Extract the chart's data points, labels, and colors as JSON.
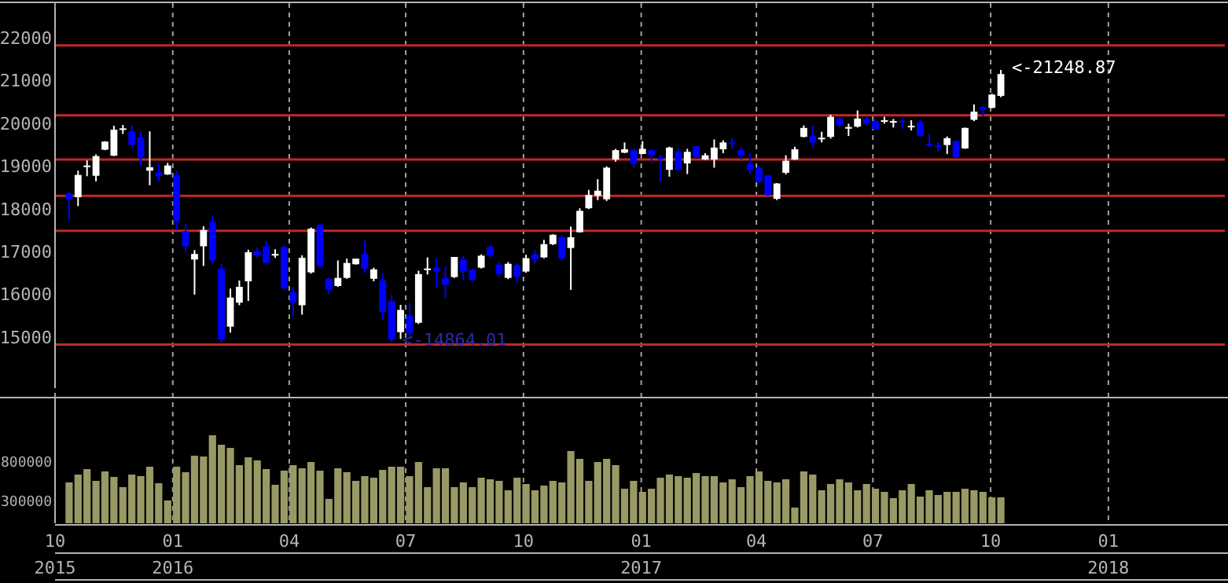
{
  "chart_data": [
    {
      "type": "candlestick",
      "x": [
        "2015-10-12",
        "2015-10-19",
        "2015-10-26",
        "2015-11-02",
        "2015-11-09",
        "2015-11-16",
        "2015-11-23",
        "2015-11-30",
        "2015-12-07",
        "2015-12-14",
        "2015-12-21",
        "2015-12-28",
        "2016-01-04",
        "2016-01-11",
        "2016-01-18",
        "2016-01-25",
        "2016-02-01",
        "2016-02-08",
        "2016-02-15",
        "2016-02-22",
        "2016-02-29",
        "2016-03-07",
        "2016-03-14",
        "2016-03-21",
        "2016-03-28",
        "2016-04-04",
        "2016-04-11",
        "2016-04-18",
        "2016-04-25",
        "2016-05-02",
        "2016-05-09",
        "2016-05-16",
        "2016-05-23",
        "2016-05-30",
        "2016-06-06",
        "2016-06-13",
        "2016-06-20",
        "2016-06-27",
        "2016-07-04",
        "2016-07-11",
        "2016-07-18",
        "2016-07-25",
        "2016-08-01",
        "2016-08-08",
        "2016-08-15",
        "2016-08-22",
        "2016-08-29",
        "2016-09-05",
        "2016-09-12",
        "2016-09-19",
        "2016-09-26",
        "2016-10-03",
        "2016-10-10",
        "2016-10-17",
        "2016-10-24",
        "2016-10-31",
        "2016-11-07",
        "2016-11-14",
        "2016-11-21",
        "2016-11-28",
        "2016-12-05",
        "2016-12-12",
        "2016-12-19",
        "2016-12-26",
        "2017-01-02",
        "2017-01-09",
        "2017-01-16",
        "2017-01-23",
        "2017-01-30",
        "2017-02-06",
        "2017-02-13",
        "2017-02-20",
        "2017-02-27",
        "2017-03-06",
        "2017-03-13",
        "2017-03-20",
        "2017-03-27",
        "2017-04-03",
        "2017-04-10",
        "2017-04-17",
        "2017-04-24",
        "2017-05-01",
        "2017-05-08",
        "2017-05-15",
        "2017-05-22",
        "2017-05-29",
        "2017-06-05",
        "2017-06-12",
        "2017-06-19",
        "2017-06-26",
        "2017-07-03",
        "2017-07-10",
        "2017-07-17",
        "2017-07-24",
        "2017-07-31",
        "2017-08-07",
        "2017-08-14",
        "2017-08-21",
        "2017-08-28",
        "2017-09-04",
        "2017-09-11",
        "2017-09-18",
        "2017-09-25",
        "2017-10-02",
        "2017-10-09"
      ],
      "ohlc": [
        [
          18360,
          18400,
          17720,
          18210
        ],
        [
          18270,
          18890,
          18060,
          18790
        ],
        [
          19000,
          19130,
          18760,
          19010
        ],
        [
          18770,
          19270,
          18640,
          19230
        ],
        [
          19380,
          19580,
          19370,
          19570
        ],
        [
          19240,
          19940,
          19230,
          19850
        ],
        [
          19870,
          19960,
          19750,
          19880
        ],
        [
          19810,
          19960,
          19420,
          19500
        ],
        [
          19670,
          19810,
          19010,
          19200
        ],
        [
          18890,
          19810,
          18550,
          18970
        ],
        [
          18850,
          19050,
          18640,
          18760
        ],
        [
          18800,
          19070,
          18790,
          19010
        ],
        [
          18790,
          18890,
          17500,
          17710
        ],
        [
          17470,
          17650,
          16970,
          17120
        ],
        [
          16810,
          17030,
          15990,
          16940
        ],
        [
          17120,
          17590,
          16660,
          17500
        ],
        [
          17690,
          17840,
          16730,
          16790
        ],
        [
          16600,
          16720,
          14870,
          14940
        ],
        [
          15240,
          16130,
          15100,
          15920
        ],
        [
          15800,
          16320,
          15740,
          16170
        ],
        [
          16300,
          17040,
          15840,
          16980
        ],
        [
          17000,
          17090,
          16850,
          16910
        ],
        [
          17120,
          17250,
          16720,
          16730
        ],
        [
          16930,
          17050,
          16850,
          16940
        ],
        [
          17100,
          17160,
          16090,
          16140
        ],
        [
          16050,
          16170,
          15470,
          15800
        ],
        [
          15740,
          16910,
          15520,
          16850
        ],
        [
          16510,
          17560,
          16480,
          17530
        ],
        [
          17620,
          17640,
          16600,
          16660
        ],
        [
          16360,
          16380,
          15990,
          16110
        ],
        [
          16190,
          16790,
          16170,
          16380
        ],
        [
          16380,
          16830,
          16360,
          16730
        ],
        [
          16700,
          16830,
          16690,
          16830
        ],
        [
          16940,
          17250,
          16500,
          16600
        ],
        [
          16360,
          16620,
          16300,
          16580
        ],
        [
          16320,
          16480,
          15390,
          15580
        ],
        [
          15840,
          15990,
          14864.01,
          14940
        ],
        [
          15110,
          15750,
          14950,
          15630
        ],
        [
          15500,
          15790,
          14990,
          15080
        ],
        [
          15330,
          16550,
          15300,
          16470
        ],
        [
          16590,
          16860,
          16460,
          16600
        ],
        [
          16620,
          16840,
          16160,
          16530
        ],
        [
          16370,
          16650,
          15910,
          16220
        ],
        [
          16400,
          16870,
          16380,
          16870
        ],
        [
          16810,
          16900,
          16340,
          16530
        ],
        [
          16570,
          16600,
          16300,
          16340
        ],
        [
          16620,
          16930,
          16600,
          16900
        ],
        [
          17110,
          17160,
          16850,
          16900
        ],
        [
          16690,
          16750,
          16400,
          16470
        ],
        [
          16380,
          16750,
          16350,
          16710
        ],
        [
          16680,
          16720,
          16250,
          16410
        ],
        [
          16530,
          16920,
          16500,
          16840
        ],
        [
          16930,
          17030,
          16710,
          16810
        ],
        [
          16860,
          17270,
          16840,
          17170
        ],
        [
          17170,
          17400,
          17150,
          17390
        ],
        [
          17330,
          17400,
          16780,
          16840
        ],
        [
          17080,
          17580,
          16100,
          17330
        ],
        [
          17450,
          18010,
          17440,
          17950
        ],
        [
          18010,
          18440,
          17990,
          18320
        ],
        [
          18300,
          18690,
          18200,
          18420
        ],
        [
          18220,
          18990,
          18180,
          18960
        ],
        [
          19150,
          19400,
          19100,
          19370
        ],
        [
          19310,
          19550,
          19300,
          19390
        ],
        [
          19370,
          19400,
          18960,
          19060
        ],
        [
          19280,
          19580,
          19280,
          19400
        ],
        [
          19370,
          19400,
          19060,
          19250
        ],
        [
          19190,
          19260,
          18630,
          19170
        ],
        [
          18910,
          19450,
          18750,
          19430
        ],
        [
          19330,
          19400,
          18900,
          18910
        ],
        [
          19060,
          19400,
          18810,
          19330
        ],
        [
          19460,
          19480,
          19200,
          19210
        ],
        [
          19150,
          19300,
          19140,
          19250
        ],
        [
          19150,
          19620,
          18960,
          19430
        ],
        [
          19390,
          19600,
          19300,
          19550
        ],
        [
          19550,
          19650,
          19400,
          19530
        ],
        [
          19370,
          19450,
          19150,
          19250
        ],
        [
          19040,
          19300,
          18800,
          18910
        ],
        [
          18960,
          19000,
          18600,
          18630
        ],
        [
          18780,
          18800,
          18300,
          18320
        ],
        [
          18230,
          18600,
          18200,
          18590
        ],
        [
          18840,
          19250,
          18800,
          19120
        ],
        [
          19150,
          19450,
          19140,
          19390
        ],
        [
          19680,
          19950,
          19670,
          19890
        ],
        [
          19700,
          19950,
          19430,
          19550
        ],
        [
          19650,
          19800,
          19550,
          19660
        ],
        [
          19680,
          20200,
          19640,
          20150
        ],
        [
          20110,
          20130,
          19900,
          19950
        ],
        [
          19900,
          19990,
          19700,
          19910
        ],
        [
          19920,
          20300,
          19900,
          20110
        ],
        [
          20110,
          20150,
          19950,
          19990
        ],
        [
          20050,
          20100,
          19850,
          19860
        ],
        [
          20060,
          20150,
          19990,
          20070
        ],
        [
          20040,
          20100,
          19900,
          20050
        ],
        [
          20060,
          20110,
          19870,
          20040
        ],
        [
          19930,
          20070,
          19830,
          19940
        ],
        [
          20020,
          20080,
          19690,
          19700
        ],
        [
          19520,
          19750,
          19440,
          19490
        ],
        [
          19480,
          19560,
          19340,
          19450
        ],
        [
          19490,
          19690,
          19280,
          19650
        ],
        [
          19580,
          19600,
          19190,
          19210
        ],
        [
          19410,
          19900,
          19400,
          19890
        ],
        [
          20080,
          20440,
          20050,
          20270
        ],
        [
          20380,
          20400,
          20170,
          20320
        ],
        [
          20360,
          20690,
          20350,
          20670
        ],
        [
          20640,
          21248.87,
          20610,
          21150
        ]
      ],
      "colors": [
        "#0000ff",
        "#ffffff",
        "#ffffff",
        "#ffffff",
        "#ffffff",
        "#ffffff",
        "#ffffff",
        "#0000ff",
        "#0000ff",
        "#ffffff",
        "#0000ff",
        "#ffffff",
        "#0000ff",
        "#0000ff",
        "#ffffff",
        "#ffffff",
        "#0000ff",
        "#0000ff",
        "#ffffff",
        "#ffffff",
        "#ffffff",
        "#0000ff",
        "#0000ff",
        "#ffffff",
        "#0000ff",
        "#0000ff",
        "#ffffff",
        "#ffffff",
        "#0000ff",
        "#0000ff",
        "#ffffff",
        "#ffffff",
        "#ffffff",
        "#0000ff",
        "#ffffff",
        "#0000ff",
        "#0000ff",
        "#ffffff",
        "#0000ff",
        "#ffffff",
        "#ffffff",
        "#0000ff",
        "#0000ff",
        "#ffffff",
        "#0000ff",
        "#0000ff",
        "#ffffff",
        "#0000ff",
        "#0000ff",
        "#ffffff",
        "#0000ff",
        "#ffffff",
        "#0000ff",
        "#ffffff",
        "#ffffff",
        "#0000ff",
        "#ffffff",
        "#ffffff",
        "#ffffff",
        "#ffffff",
        "#ffffff",
        "#ffffff",
        "#ffffff",
        "#0000ff",
        "#ffffff",
        "#0000ff",
        "#0000ff",
        "#ffffff",
        "#0000ff",
        "#ffffff",
        "#0000ff",
        "#ffffff",
        "#ffffff",
        "#ffffff",
        "#0000ff",
        "#0000ff",
        "#0000ff",
        "#0000ff",
        "#0000ff",
        "#ffffff",
        "#ffffff",
        "#ffffff",
        "#ffffff",
        "#0000ff",
        "#ffffff",
        "#ffffff",
        "#0000ff",
        "#ffffff",
        "#ffffff",
        "#0000ff",
        "#0000ff",
        "#ffffff",
        "#ffffff",
        "#0000ff",
        "#ffffff",
        "#0000ff",
        "#0000ff",
        "#0000ff",
        "#ffffff",
        "#0000ff",
        "#ffffff",
        "#ffffff",
        "#0000ff",
        "#ffffff",
        "#ffffff"
      ],
      "xlim": [
        "2015-10-01",
        "2018-04-02"
      ],
      "xticks": [
        {
          "value": "2015-10-01",
          "label": null
        },
        {
          "value": "2016-01-01",
          "label": null
        },
        {
          "value": "2016-04-01",
          "label": null
        },
        {
          "value": "2016-07-01",
          "label": null
        },
        {
          "value": "2016-10-01",
          "label": null
        },
        {
          "value": "2017-01-01",
          "label": null
        },
        {
          "value": "2017-04-01",
          "label": null
        },
        {
          "value": "2017-07-01",
          "label": null
        },
        {
          "value": "2017-10-01",
          "label": null
        },
        {
          "value": "2018-01-01",
          "label": null
        }
      ],
      "ylim": [
        13800,
        22700
      ],
      "yticks": [
        15000,
        16000,
        17000,
        18000,
        19000,
        20000,
        21000,
        22000
      ],
      "grid": "x",
      "tick_labels": "y",
      "ref_lines": [
        {
          "axis": "y",
          "value": 14820,
          "color": "#c02828"
        },
        {
          "axis": "y",
          "value": 17480,
          "color": "#c02828"
        },
        {
          "axis": "y",
          "value": 18300,
          "color": "#c02828"
        },
        {
          "axis": "y",
          "value": 19150,
          "color": "#c02828"
        },
        {
          "axis": "y",
          "value": 20185,
          "color": "#c02828"
        },
        {
          "axis": "y",
          "value": 21820,
          "color": "#c02828"
        }
      ],
      "annotations": [
        {
          "text": "<-14864.01",
          "x": "2016-06-20",
          "y": 14864.01
        },
        {
          "text": "<-21248.87",
          "x": "2017-10-09",
          "y": 21248.87
        }
      ]
    },
    {
      "type": "bar",
      "x": [
        "2015-10-12",
        "2015-10-19",
        "2015-10-26",
        "2015-11-02",
        "2015-11-09",
        "2015-11-16",
        "2015-11-23",
        "2015-11-30",
        "2015-12-07",
        "2015-12-14",
        "2015-12-21",
        "2015-12-28",
        "2016-01-04",
        "2016-01-11",
        "2016-01-18",
        "2016-01-25",
        "2016-02-01",
        "2016-02-08",
        "2016-02-15",
        "2016-02-22",
        "2016-02-29",
        "2016-03-07",
        "2016-03-14",
        "2016-03-21",
        "2016-03-28",
        "2016-04-04",
        "2016-04-11",
        "2016-04-18",
        "2016-04-25",
        "2016-05-02",
        "2016-05-09",
        "2016-05-16",
        "2016-05-23",
        "2016-05-30",
        "2016-06-06",
        "2016-06-13",
        "2016-06-20",
        "2016-06-27",
        "2016-07-04",
        "2016-07-11",
        "2016-07-18",
        "2016-07-25",
        "2016-08-01",
        "2016-08-08",
        "2016-08-15",
        "2016-08-22",
        "2016-08-29",
        "2016-09-05",
        "2016-09-12",
        "2016-09-19",
        "2016-09-26",
        "2016-10-03",
        "2016-10-10",
        "2016-10-17",
        "2016-10-24",
        "2016-10-31",
        "2016-11-07",
        "2016-11-14",
        "2016-11-21",
        "2016-11-28",
        "2016-12-05",
        "2016-12-12",
        "2016-12-19",
        "2016-12-26",
        "2017-01-02",
        "2017-01-09",
        "2017-01-16",
        "2017-01-23",
        "2017-01-30",
        "2017-02-06",
        "2017-02-13",
        "2017-02-20",
        "2017-02-27",
        "2017-03-06",
        "2017-03-13",
        "2017-03-20",
        "2017-03-27",
        "2017-04-03",
        "2017-04-10",
        "2017-04-17",
        "2017-04-24",
        "2017-05-01",
        "2017-05-08",
        "2017-05-15",
        "2017-05-22",
        "2017-05-29",
        "2017-06-05",
        "2017-06-12",
        "2017-06-19",
        "2017-06-26",
        "2017-07-03",
        "2017-07-10",
        "2017-07-17",
        "2017-07-24",
        "2017-07-31",
        "2017-08-07",
        "2017-08-14",
        "2017-08-21",
        "2017-08-28",
        "2017-09-04",
        "2017-09-11",
        "2017-09-18",
        "2017-09-25",
        "2017-10-02",
        "2017-10-09"
      ],
      "values": [
        520000,
        620000,
        690000,
        540000,
        660000,
        590000,
        460000,
        620000,
        600000,
        720000,
        510000,
        290000,
        720000,
        650000,
        860000,
        850000,
        1120000,
        1000000,
        960000,
        740000,
        840000,
        800000,
        690000,
        490000,
        670000,
        740000,
        700000,
        780000,
        670000,
        310000,
        700000,
        650000,
        540000,
        600000,
        580000,
        680000,
        720000,
        720000,
        600000,
        780000,
        460000,
        700000,
        700000,
        460000,
        520000,
        460000,
        580000,
        560000,
        540000,
        420000,
        580000,
        500000,
        420000,
        480000,
        540000,
        520000,
        920000,
        820000,
        540000,
        780000,
        820000,
        740000,
        440000,
        540000,
        400000,
        440000,
        580000,
        620000,
        600000,
        580000,
        640000,
        600000,
        600000,
        520000,
        560000,
        460000,
        600000,
        660000,
        540000,
        520000,
        560000,
        200000,
        660000,
        620000,
        420000,
        500000,
        560000,
        520000,
        420000,
        500000,
        440000,
        400000,
        320000,
        420000,
        500000,
        340000,
        420000,
        360000,
        400000,
        400000,
        440000,
        420000,
        400000,
        330000,
        330000
      ],
      "color": "#999966",
      "xlim": [
        "2015-10-01",
        "2018-04-02"
      ],
      "xticks": [
        {
          "value": "2015-10-01",
          "label": "10\n2015"
        },
        {
          "value": "2016-01-01",
          "label": "01\n2016"
        },
        {
          "value": "2016-04-01",
          "label": "04"
        },
        {
          "value": "2016-07-01",
          "label": "07"
        },
        {
          "value": "2016-10-01",
          "label": "10"
        },
        {
          "value": "2017-01-01",
          "label": "01\n2017"
        },
        {
          "value": "2017-04-01",
          "label": "04"
        },
        {
          "value": "2017-07-01",
          "label": "07"
        },
        {
          "value": "2017-10-01",
          "label": "10"
        },
        {
          "value": "2018-01-01",
          "label": "01\n2018"
        }
      ],
      "ylim": [
        0,
        1600000
      ],
      "yticks": [
        300000,
        800000
      ],
      "grid": "x"
    }
  ]
}
